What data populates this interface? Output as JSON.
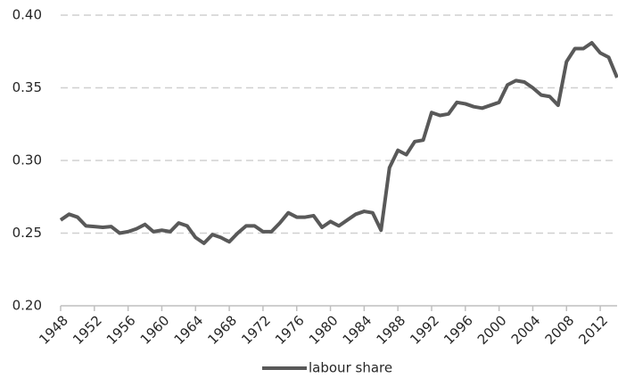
{
  "chart_data": {
    "type": "line",
    "x": [
      1948,
      1949,
      1950,
      1951,
      1952,
      1953,
      1954,
      1955,
      1956,
      1957,
      1958,
      1959,
      1960,
      1961,
      1962,
      1963,
      1964,
      1965,
      1966,
      1967,
      1968,
      1969,
      1970,
      1971,
      1972,
      1973,
      1974,
      1975,
      1976,
      1977,
      1978,
      1979,
      1980,
      1981,
      1982,
      1983,
      1984,
      1985,
      1986,
      1987,
      1988,
      1989,
      1990,
      1991,
      1992,
      1993,
      1994,
      1995,
      1996,
      1997,
      1998,
      1999,
      2000,
      2001,
      2002,
      2003,
      2004,
      2005,
      2006,
      2007,
      2008,
      2009,
      2010,
      2011,
      2012,
      2013,
      2014
    ],
    "series": [
      {
        "name": "labour share",
        "color": "#595959",
        "values": [
          0.259,
          0.263,
          0.261,
          0.255,
          0.2545,
          0.254,
          0.2545,
          0.25,
          0.251,
          0.253,
          0.256,
          0.251,
          0.252,
          0.251,
          0.257,
          0.255,
          0.247,
          0.243,
          0.249,
          0.247,
          0.244,
          0.25,
          0.255,
          0.255,
          0.251,
          0.251,
          0.257,
          0.264,
          0.261,
          0.261,
          0.262,
          0.254,
          0.258,
          0.255,
          0.259,
          0.263,
          0.265,
          0.264,
          0.252,
          0.295,
          0.307,
          0.304,
          0.313,
          0.314,
          0.333,
          0.331,
          0.332,
          0.34,
          0.339,
          0.337,
          0.336,
          0.338,
          0.34,
          0.352,
          0.355,
          0.354,
          0.35,
          0.345,
          0.344,
          0.338,
          0.368,
          0.377,
          0.377,
          0.381,
          0.374,
          0.371,
          0.357
        ]
      }
    ],
    "xlim": [
      1948,
      2014
    ],
    "xticks": [
      1948,
      1952,
      1956,
      1960,
      1964,
      1968,
      1972,
      1976,
      1980,
      1984,
      1988,
      1992,
      1996,
      2000,
      2004,
      2008,
      2012
    ],
    "ylim": [
      0.2,
      0.4
    ],
    "yticks": [
      {
        "value": 0.2,
        "label": "0.20"
      },
      {
        "value": 0.25,
        "label": "0.25"
      },
      {
        "value": 0.3,
        "label": "0.30"
      },
      {
        "value": 0.35,
        "label": "0.35"
      },
      {
        "value": 0.4,
        "label": "0.40"
      }
    ],
    "grid": true,
    "legend": "bottom"
  }
}
